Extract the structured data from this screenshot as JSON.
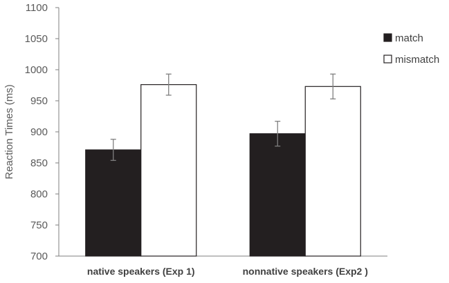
{
  "chart_data": {
    "type": "bar",
    "title": "",
    "xlabel": "",
    "ylabel": "Reaction Times (ms)",
    "ylim": [
      700,
      1100
    ],
    "yticks": [
      700,
      750,
      800,
      850,
      900,
      950,
      1000,
      1050,
      1100
    ],
    "grid": false,
    "legend_position": "right",
    "categories": [
      "native speakers (Exp 1)",
      "nonnative speakers (Exp2 )"
    ],
    "series": [
      {
        "name": "match",
        "values": [
          871,
          897
        ],
        "error": [
          17,
          20
        ],
        "color": "#231f20"
      },
      {
        "name": "mismatch",
        "values": [
          976,
          973
        ],
        "error": [
          17,
          20
        ],
        "color": "#ffffff"
      }
    ]
  }
}
